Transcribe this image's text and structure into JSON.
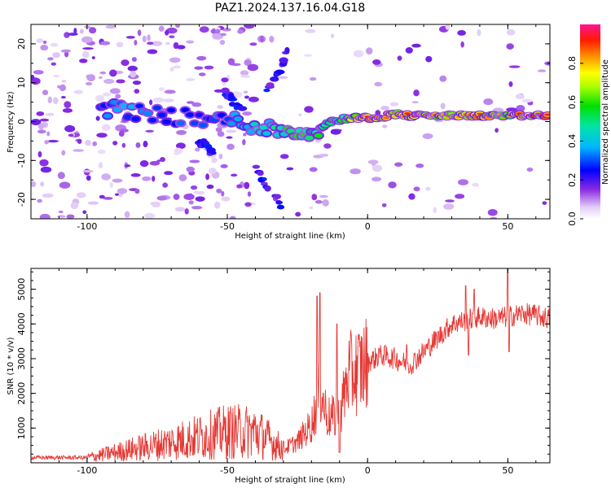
{
  "figure_title": "PAZ1.2024.137.16.04.G18",
  "chart_data": [
    {
      "type": "heatmap",
      "title": "PAZ1.2024.137.16.04.G18",
      "xlabel": "Height of straight line (km)",
      "ylabel": "Frequency (Hz)",
      "xlim": [
        -120,
        65
      ],
      "ylim": [
        -25,
        25
      ],
      "x_ticks": [
        -100,
        -50,
        0,
        50
      ],
      "y_ticks": [
        -20,
        -10,
        0,
        10,
        20
      ],
      "colorbar": {
        "label": "Normalized spectral amplitude",
        "range": [
          0.0,
          1.0
        ],
        "ticks": [
          0.0,
          0.2,
          0.4,
          0.6,
          0.8
        ]
      },
      "ridge": [
        {
          "x": -95,
          "y": 3.5,
          "a": 0.35
        },
        {
          "x": -88,
          "y": 3.0,
          "a": 0.4
        },
        {
          "x": -80,
          "y": 2.5,
          "a": 0.35
        },
        {
          "x": -70,
          "y": 1.5,
          "a": 0.35
        },
        {
          "x": -60,
          "y": 0.5,
          "a": 0.3
        },
        {
          "x": -52,
          "y": 0.5,
          "a": 0.35
        },
        {
          "x": -45,
          "y": 0.0,
          "a": 0.4
        },
        {
          "x": -38,
          "y": -1.5,
          "a": 0.45
        },
        {
          "x": -32,
          "y": -2.0,
          "a": 0.55
        },
        {
          "x": -25,
          "y": -2.5,
          "a": 0.6
        },
        {
          "x": -20,
          "y": -3.0,
          "a": 0.6
        },
        {
          "x": -15,
          "y": -0.5,
          "a": 0.55
        },
        {
          "x": -10,
          "y": 0.5,
          "a": 0.6
        },
        {
          "x": -5,
          "y": 1.0,
          "a": 0.75
        },
        {
          "x": 0,
          "y": 1.0,
          "a": 0.9
        },
        {
          "x": 5,
          "y": 1.2,
          "a": 0.85
        },
        {
          "x": 10,
          "y": 2.0,
          "a": 0.75
        },
        {
          "x": 15,
          "y": 1.5,
          "a": 0.9
        },
        {
          "x": 20,
          "y": 1.5,
          "a": 0.95
        },
        {
          "x": 25,
          "y": 1.5,
          "a": 0.8
        },
        {
          "x": 30,
          "y": 1.5,
          "a": 0.75
        },
        {
          "x": 35,
          "y": 1.5,
          "a": 0.8
        },
        {
          "x": 40,
          "y": 1.5,
          "a": 0.85
        },
        {
          "x": 45,
          "y": 1.5,
          "a": 0.8
        },
        {
          "x": 50,
          "y": 1.5,
          "a": 0.75
        },
        {
          "x": 55,
          "y": 1.5,
          "a": 0.9
        },
        {
          "x": 60,
          "y": 1.5,
          "a": 0.95
        },
        {
          "x": 65,
          "y": 1.5,
          "a": 0.9
        }
      ]
    },
    {
      "type": "line",
      "xlabel": "Height of straight line (km)",
      "ylabel": "SNR (10 * v/v)",
      "xlim": [
        -120,
        65
      ],
      "ylim": [
        0,
        5600
      ],
      "x_ticks": [
        -100,
        -50,
        0,
        50
      ],
      "y_ticks": [
        1000,
        2000,
        3000,
        4000,
        5000
      ],
      "line_color": "#e53935",
      "trend": [
        {
          "x": -120,
          "y": 150
        },
        {
          "x": -100,
          "y": 150
        },
        {
          "x": -90,
          "y": 300
        },
        {
          "x": -80,
          "y": 450
        },
        {
          "x": -70,
          "y": 600
        },
        {
          "x": -60,
          "y": 750
        },
        {
          "x": -50,
          "y": 900
        },
        {
          "x": -40,
          "y": 900
        },
        {
          "x": -30,
          "y": 400
        },
        {
          "x": -25,
          "y": 600
        },
        {
          "x": -20,
          "y": 1100
        },
        {
          "x": -17,
          "y": 2000
        },
        {
          "x": -14,
          "y": 1300
        },
        {
          "x": -10,
          "y": 1300
        },
        {
          "x": -7,
          "y": 2500
        },
        {
          "x": -3,
          "y": 2700
        },
        {
          "x": 0,
          "y": 2900
        },
        {
          "x": 5,
          "y": 3100
        },
        {
          "x": 10,
          "y": 3000
        },
        {
          "x": 15,
          "y": 2800
        },
        {
          "x": 20,
          "y": 3200
        },
        {
          "x": 25,
          "y": 3600
        },
        {
          "x": 30,
          "y": 4000
        },
        {
          "x": 35,
          "y": 4100
        },
        {
          "x": 40,
          "y": 4200
        },
        {
          "x": 45,
          "y": 4150
        },
        {
          "x": 50,
          "y": 4200
        },
        {
          "x": 55,
          "y": 4300
        },
        {
          "x": 60,
          "y": 4250
        },
        {
          "x": 65,
          "y": 4150
        }
      ],
      "spikes": [
        {
          "x": -17,
          "y": 4900
        },
        {
          "x": -18,
          "y": 4800
        },
        {
          "x": -11,
          "y": 4000
        },
        {
          "x": -10,
          "y": 300
        },
        {
          "x": 4,
          "y": 3300
        },
        {
          "x": 14,
          "y": 3400
        },
        {
          "x": 35,
          "y": 5100
        },
        {
          "x": 36,
          "y": 3100
        },
        {
          "x": 38,
          "y": 5000
        },
        {
          "x": 50,
          "y": 5600
        },
        {
          "x": 50.5,
          "y": 3200
        }
      ]
    }
  ]
}
